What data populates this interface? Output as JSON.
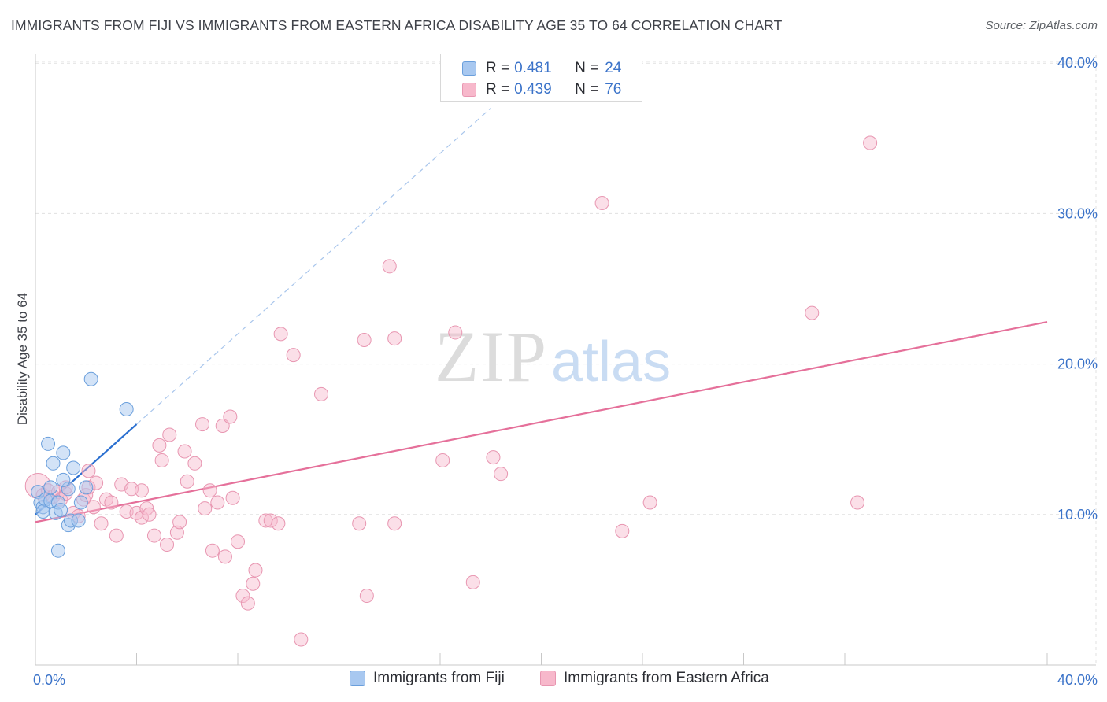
{
  "title": "IMMIGRANTS FROM FIJI VS IMMIGRANTS FROM EASTERN AFRICA DISABILITY AGE 35 TO 64 CORRELATION CHART",
  "source": "Source: ZipAtlas.com",
  "watermark": {
    "zip": "ZIP",
    "atlas": "atlas"
  },
  "legend": {
    "r_label": "R =",
    "n_label": "N =",
    "fiji": {
      "r": "0.481",
      "n": "24"
    },
    "eafrica": {
      "r": "0.439",
      "n": "76"
    }
  },
  "bottom_legend": {
    "fiji": "Immigrants from Fiji",
    "eafrica": "Immigrants from Eastern Africa"
  },
  "colors": {
    "fiji_fill": "#a8c8f0",
    "fiji_stroke": "#6a9fdc",
    "fiji_line": "#2a6fd0",
    "eafrica_fill": "#f7b8cb",
    "eafrica_stroke": "#e896b1",
    "eafrica_line": "#e5709a",
    "grid": "#e0e0e0",
    "tick_text": "#3b73c9"
  },
  "chart_data": {
    "type": "scatter",
    "title": "IMMIGRANTS FROM FIJI VS IMMIGRANTS FROM EASTERN AFRICA DISABILITY AGE 35 TO 64 CORRELATION CHART",
    "xlabel": "",
    "ylabel": "Disability Age 35 to 64",
    "xlim": [
      0,
      40
    ],
    "ylim": [
      0,
      41
    ],
    "x_tick_labels": [
      "0.0%",
      "40.0%"
    ],
    "y_ticks": [
      10,
      20,
      30,
      40
    ],
    "y_tick_labels": [
      "10.0%",
      "20.0%",
      "30.0%",
      "40.0%"
    ],
    "grid": true,
    "series": [
      {
        "name": "Immigrants from Fiji",
        "r": 0.481,
        "n": 24,
        "points": [
          [
            0.1,
            11.5
          ],
          [
            0.2,
            10.8
          ],
          [
            0.3,
            10.5
          ],
          [
            0.3,
            10.2
          ],
          [
            0.4,
            11.0
          ],
          [
            0.5,
            14.7
          ],
          [
            0.6,
            11.8
          ],
          [
            0.6,
            10.9
          ],
          [
            0.7,
            13.4
          ],
          [
            0.8,
            10.1
          ],
          [
            0.9,
            10.8
          ],
          [
            1.0,
            10.3
          ],
          [
            1.1,
            14.1
          ],
          [
            1.3,
            9.3
          ],
          [
            1.3,
            11.7
          ],
          [
            1.4,
            9.6
          ],
          [
            1.5,
            13.1
          ],
          [
            1.7,
            9.6
          ],
          [
            1.8,
            10.8
          ],
          [
            2.0,
            11.8
          ],
          [
            2.2,
            19.0
          ],
          [
            3.6,
            17.0
          ],
          [
            0.9,
            7.6
          ],
          [
            1.1,
            12.3
          ]
        ],
        "trend": {
          "x0": 0.0,
          "y0": 10.0,
          "x1": 4.0,
          "y1": 16.0,
          "dash_to_x": 18.0,
          "dash_to_y": 37.0
        }
      },
      {
        "name": "Immigrants from Eastern Africa",
        "r": 0.439,
        "n": 76,
        "points": [
          [
            0.1,
            11.9
          ],
          [
            0.3,
            11.3
          ],
          [
            0.5,
            11.6
          ],
          [
            0.7,
            11.2
          ],
          [
            0.9,
            11.5
          ],
          [
            1.0,
            11.0
          ],
          [
            1.2,
            11.4
          ],
          [
            1.5,
            10.1
          ],
          [
            1.7,
            9.9
          ],
          [
            1.9,
            11.0
          ],
          [
            2.0,
            11.3
          ],
          [
            2.1,
            11.8
          ],
          [
            2.3,
            10.5
          ],
          [
            2.4,
            12.1
          ],
          [
            2.6,
            9.4
          ],
          [
            2.8,
            11.0
          ],
          [
            3.0,
            10.8
          ],
          [
            3.2,
            8.6
          ],
          [
            3.4,
            12.0
          ],
          [
            3.6,
            10.2
          ],
          [
            3.8,
            11.7
          ],
          [
            4.0,
            10.1
          ],
          [
            4.2,
            9.8
          ],
          [
            4.4,
            10.4
          ],
          [
            4.5,
            10.0
          ],
          [
            4.7,
            8.6
          ],
          [
            4.9,
            14.6
          ],
          [
            5.0,
            13.6
          ],
          [
            5.2,
            8.0
          ],
          [
            5.3,
            15.3
          ],
          [
            5.6,
            8.8
          ],
          [
            5.7,
            9.5
          ],
          [
            5.9,
            14.2
          ],
          [
            6.0,
            12.2
          ],
          [
            6.3,
            13.4
          ],
          [
            6.6,
            16.0
          ],
          [
            6.7,
            10.4
          ],
          [
            6.9,
            11.6
          ],
          [
            7.0,
            7.6
          ],
          [
            7.2,
            10.8
          ],
          [
            7.4,
            15.9
          ],
          [
            7.5,
            7.2
          ],
          [
            7.7,
            16.5
          ],
          [
            7.8,
            11.1
          ],
          [
            8.0,
            8.2
          ],
          [
            8.2,
            4.6
          ],
          [
            8.4,
            4.1
          ],
          [
            8.6,
            5.4
          ],
          [
            8.7,
            6.3
          ],
          [
            9.1,
            9.6
          ],
          [
            9.3,
            9.6
          ],
          [
            9.6,
            9.4
          ],
          [
            9.7,
            22.0
          ],
          [
            10.2,
            20.6
          ],
          [
            10.5,
            1.7
          ],
          [
            11.3,
            18.0
          ],
          [
            12.8,
            9.4
          ],
          [
            13.0,
            21.6
          ],
          [
            13.1,
            4.6
          ],
          [
            14.0,
            26.5
          ],
          [
            14.2,
            9.4
          ],
          [
            14.2,
            21.7
          ],
          [
            16.1,
            13.6
          ],
          [
            16.6,
            22.1
          ],
          [
            17.3,
            5.5
          ],
          [
            18.1,
            13.8
          ],
          [
            18.4,
            12.7
          ],
          [
            22.4,
            30.7
          ],
          [
            23.2,
            8.9
          ],
          [
            24.3,
            10.8
          ],
          [
            30.7,
            23.4
          ],
          [
            33.0,
            34.7
          ],
          [
            32.5,
            10.8
          ],
          [
            2.1,
            12.9
          ],
          [
            4.2,
            11.6
          ],
          [
            1.2,
            11.8
          ]
        ],
        "trend": {
          "x0": 0.0,
          "y0": 9.5,
          "x1": 40.0,
          "y1": 22.8
        }
      }
    ]
  }
}
